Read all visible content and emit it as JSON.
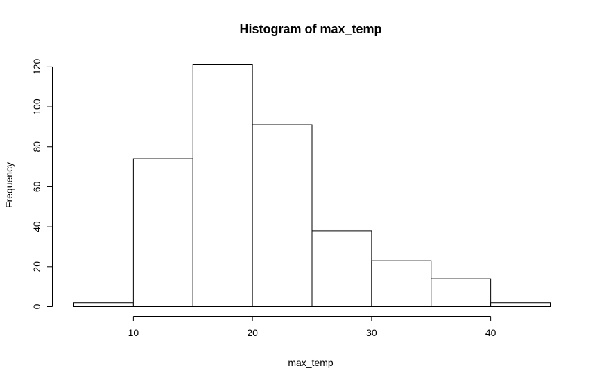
{
  "chart_data": {
    "type": "bar",
    "title": "Histogram of max_temp",
    "xlabel": "max_temp",
    "ylabel": "Frequency",
    "bins": [
      {
        "start": 5,
        "end": 10,
        "value": 2
      },
      {
        "start": 10,
        "end": 15,
        "value": 74
      },
      {
        "start": 15,
        "end": 20,
        "value": 121
      },
      {
        "start": 20,
        "end": 25,
        "value": 91
      },
      {
        "start": 25,
        "end": 30,
        "value": 38
      },
      {
        "start": 30,
        "end": 35,
        "value": 23
      },
      {
        "start": 35,
        "end": 40,
        "value": 14
      },
      {
        "start": 40,
        "end": 45,
        "value": 2
      }
    ],
    "xlim": [
      5,
      45
    ],
    "ylim": [
      0,
      121
    ],
    "xticks": [
      10,
      20,
      30,
      40
    ],
    "yticks": [
      0,
      20,
      40,
      60,
      80,
      100,
      120
    ],
    "grid": false,
    "colors": {
      "bar_fill": "#ffffff",
      "bar_stroke": "#000000"
    }
  }
}
